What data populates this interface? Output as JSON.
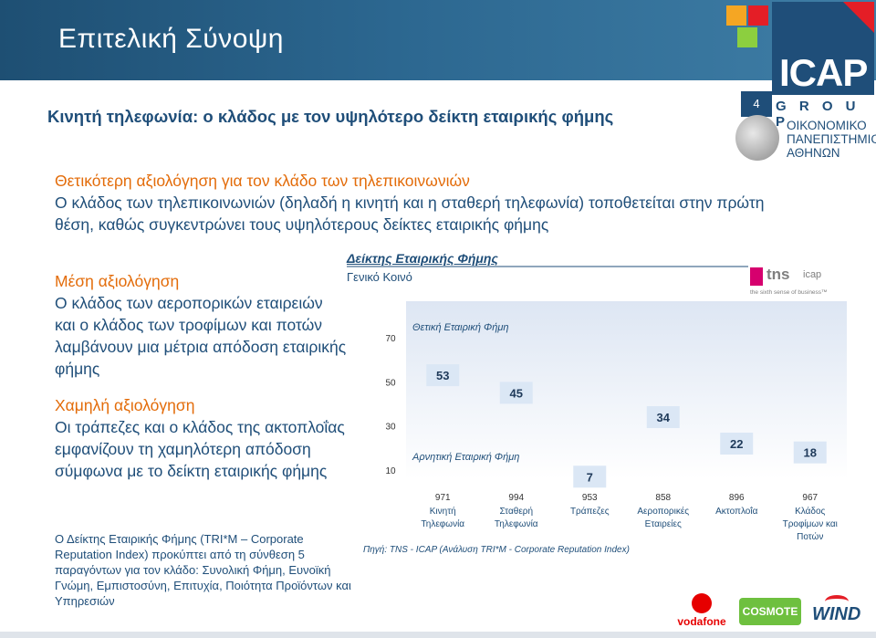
{
  "slide": {
    "title": "Επιτελική Σύνοψη",
    "page_number": "4",
    "subtitle": "Κινητή τηλεφωνία: ο κλάδος με τον υψηλότερο δείκτη εταιρικής φήμης",
    "accent_colors": [
      "#f5a623",
      "#e41e26",
      "#8ccf3f"
    ]
  },
  "logo": {
    "name": "ICAP",
    "group": "G R O U P",
    "university": [
      "ΟΙΚΟΝΟΜΙΚΟ",
      "ΠΑΝΕΠΙΣΤΗΜΙΟ",
      "ΑΘΗΝΩΝ"
    ]
  },
  "intro": {
    "heading": "Θετικότερη αξιολόγηση για τον κλάδο των τηλεπικοινωνιών",
    "text": "Ο κλάδος των τηλεπικοινωνιών (δηλαδή η κινητή και η σταθερή τηλεφωνία) τοποθετείται στην πρώτη θέση, καθώς συγκεντρώνει τους υψηλότερους δείκτες εταιρικής φήμης"
  },
  "medium": {
    "heading": "Μέση αξιολόγηση",
    "text": "Ο κλάδος των αεροπορικών εταιρειών και ο κλάδος των τροφίμων και ποτών λαμβάνουν μια μέτρια απόδοση εταιρικής φήμης"
  },
  "low": {
    "heading": "Χαμηλή αξιολόγηση",
    "text": "Οι τράπεζες και ο κλάδος της ακτοπλοΐας εμφανίζουν τη χαμηλότερη απόδοση σύμφωνα με το δείκτη εταιρικής φήμης"
  },
  "note": "Ο Δείκτης Εταιρικής Φήμης (TRI*M – Corporate Reputation Index) προκύπτει από τη σύνθεση 5 παραγόντων για τον κλάδο: Συνολική Φήμη, Ευνοϊκή Γνώμη, Εμπιστοσύνη, Επιτυχία, Ποιότητα Προϊόντων και Υπηρεσιών",
  "tns": {
    "brand": "tns",
    "sub": "icap",
    "tagline": "the sixth sense of business™"
  },
  "sponsors": [
    "vodafone",
    "COSMOTE",
    "WIND"
  ],
  "chart_data": {
    "type": "scatter",
    "title": "Δείκτης Εταιρικής Φήμης",
    "subtitle": "Γενικό Κοινό",
    "y_ticks": [
      70,
      50,
      30,
      10
    ],
    "ylim": [
      0,
      80
    ],
    "categories": [
      {
        "label": [
          "Κινητή",
          "Τηλεφωνία"
        ],
        "n": "971"
      },
      {
        "label": [
          "Σταθερή",
          "Τηλεφωνία"
        ],
        "n": "994"
      },
      {
        "label": [
          "Τράπεζες"
        ],
        "n": "953"
      },
      {
        "label": [
          "Αεροπορικές",
          "Εταιρείες"
        ],
        "n": "858"
      },
      {
        "label": [
          "Ακτοπλοΐα"
        ],
        "n": "896"
      },
      {
        "label": [
          "Κλάδος",
          "Τροφίμων και",
          "Ποτών"
        ],
        "n": "967"
      }
    ],
    "values": [
      53,
      45,
      7,
      34,
      22,
      18
    ],
    "annotations": {
      "positive": "Θετική Εταιρική Φήμη",
      "negative": "Αρνητική Εταιρική Φήμη"
    },
    "source": "Πηγή: TNS - ICAP (Ανάλυση TRI*M - Corporate Reputation Index)",
    "colors": {
      "grad_top": "#dde6f3",
      "grad_bottom": "#ffffff",
      "text": "#1f4e79"
    }
  }
}
